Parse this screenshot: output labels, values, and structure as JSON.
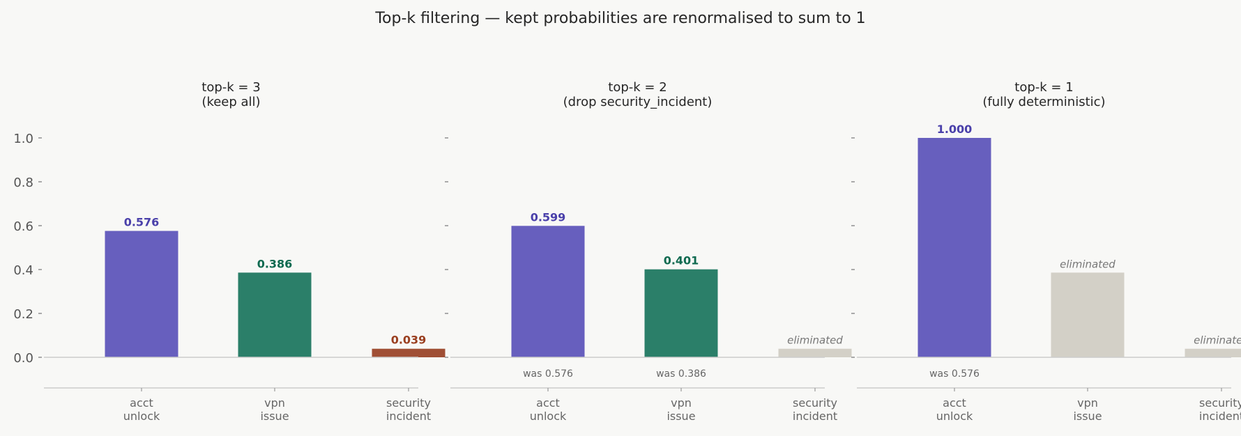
{
  "title": "Top-k filtering — kept probabilities are renormalised to sum to 1",
  "colors": {
    "acct_unlock": "#675fbe",
    "vpn_issue": "#2b7f69",
    "security_incident": "#a04f35",
    "eliminated": "#d3d0c7",
    "acct_unlock_label": "#4a40aa",
    "vpn_issue_label": "#0f6a50",
    "security_incident_label": "#9a3f20"
  },
  "chart_data": [
    {
      "type": "bar",
      "title": "top-k = 3\n(keep all)",
      "categories": [
        "acct\nunlock",
        "vpn\nissue",
        "security\nincident"
      ],
      "values": [
        0.576,
        0.386,
        0.039
      ],
      "value_labels": [
        "0.576",
        "0.386",
        "0.039"
      ],
      "status": [
        "kept",
        "kept",
        "kept"
      ],
      "annotations": [
        "",
        "",
        ""
      ],
      "ylim": [
        -0.14,
        1.05
      ],
      "yticks": [
        "0.0",
        "0.2",
        "0.4",
        "0.6",
        "0.8",
        "1.0"
      ],
      "show_ytick_labels": true
    },
    {
      "type": "bar",
      "title": "top-k = 2\n(drop security_incident)",
      "categories": [
        "acct\nunlock",
        "vpn\nissue",
        "security\nincident"
      ],
      "values": [
        0.599,
        0.401,
        0.039
      ],
      "value_labels": [
        "0.599",
        "0.401",
        "eliminated"
      ],
      "status": [
        "kept",
        "kept",
        "eliminated"
      ],
      "annotations": [
        "was 0.576",
        "was 0.386",
        ""
      ],
      "ylim": [
        -0.14,
        1.05
      ],
      "yticks": [
        "0.0",
        "0.2",
        "0.4",
        "0.6",
        "0.8",
        "1.0"
      ],
      "show_ytick_labels": false
    },
    {
      "type": "bar",
      "title": "top-k = 1\n(fully deterministic)",
      "categories": [
        "acct\nunlock",
        "vpn\nissue",
        "security\nincident"
      ],
      "values": [
        1.0,
        0.386,
        0.039
      ],
      "value_labels": [
        "1.000",
        "eliminated",
        "eliminated"
      ],
      "status": [
        "kept",
        "eliminated",
        "eliminated"
      ],
      "annotations": [
        "was 0.576",
        "",
        ""
      ],
      "ylim": [
        -0.14,
        1.05
      ],
      "yticks": [
        "0.0",
        "0.2",
        "0.4",
        "0.6",
        "0.8",
        "1.0"
      ],
      "show_ytick_labels": false
    }
  ]
}
